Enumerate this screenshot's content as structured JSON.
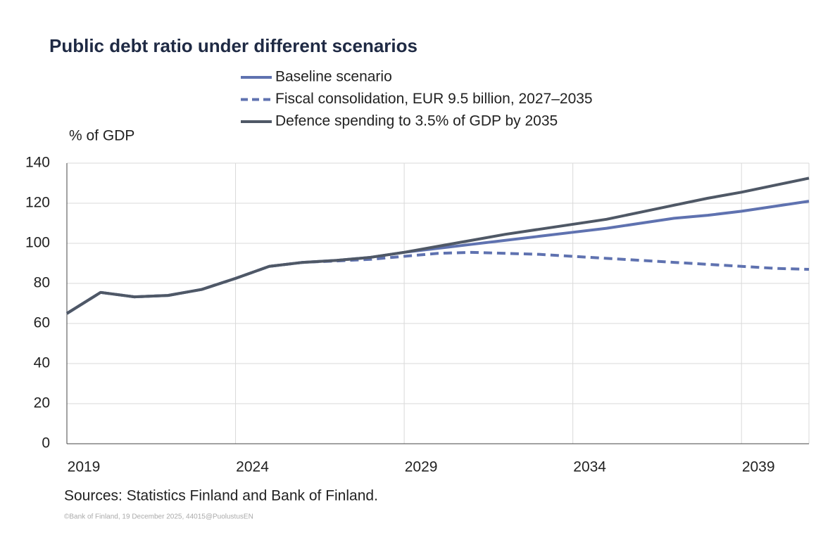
{
  "chart_data": {
    "type": "line",
    "title": "Public debt ratio under different scenarios",
    "y_label": "% of GDP",
    "source": "Sources: Statistics Finland and Bank of Finland.",
    "footer": "©Bank of Finland, 19 December 2025, 44015@PuolustusEN",
    "x": [
      2019,
      2020,
      2021,
      2022,
      2023,
      2024,
      2025,
      2026,
      2027,
      2028,
      2029,
      2030,
      2031,
      2032,
      2033,
      2034,
      2035,
      2036,
      2037,
      2038,
      2039,
      2040,
      2041
    ],
    "xlim": [
      2019,
      2041
    ],
    "xticks": [
      2019,
      2024,
      2029,
      2034,
      2039
    ],
    "ylim": [
      0,
      140
    ],
    "yticks": [
      0,
      20,
      40,
      60,
      80,
      100,
      120,
      140
    ],
    "grid": true,
    "series": [
      {
        "name": "Baseline scenario",
        "color": "#5f72b0",
        "dash": false,
        "values": [
          65,
          75.5,
          73.3,
          74,
          77,
          82.5,
          88.5,
          90.5,
          91.5,
          93,
          95.5,
          97.5,
          99.5,
          101.5,
          103.5,
          105.5,
          107.5,
          110,
          112.5,
          114,
          116,
          118.5,
          121
        ]
      },
      {
        "name": "Fiscal consolidation, EUR 9.5 billion, 2027–2035",
        "color": "#5f72b0",
        "dash": true,
        "values": [
          65,
          75.5,
          73.3,
          74,
          77,
          82.5,
          88.5,
          90.5,
          91.2,
          92,
          93.5,
          95,
          95.5,
          95,
          94.5,
          93.5,
          92.5,
          91.5,
          90.5,
          89.5,
          88.5,
          87.5,
          87
        ]
      },
      {
        "name": "Defence spending to 3.5% of GDP by 2035",
        "color": "#4f5866",
        "dash": false,
        "values": [
          65,
          75.5,
          73.3,
          74,
          77,
          82.5,
          88.5,
          90.5,
          91.5,
          93,
          95.5,
          98.5,
          101.5,
          104.5,
          107,
          109.5,
          112,
          115.5,
          119,
          122.5,
          125.5,
          129,
          132.5
        ]
      }
    ]
  }
}
